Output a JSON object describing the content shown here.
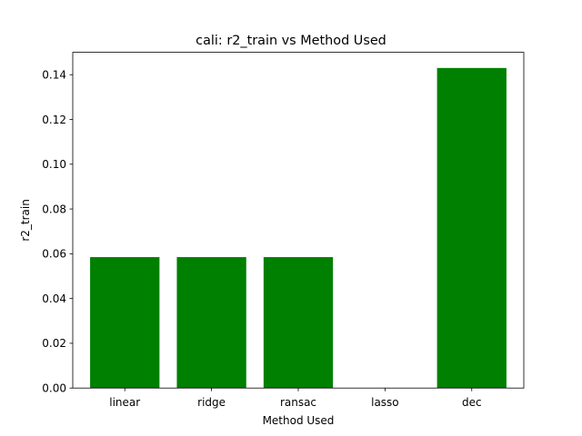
{
  "chart_data": {
    "type": "bar",
    "title": "cali: r2_train vs Method Used",
    "xlabel": "Method Used",
    "ylabel": "r2_train",
    "categories": [
      "linear",
      "ridge",
      "ransac",
      "lasso",
      "dec"
    ],
    "values": [
      0.0585,
      0.0585,
      0.0585,
      0.0,
      0.143
    ],
    "ylim": [
      0,
      0.15
    ],
    "yticks": [
      0.0,
      0.02,
      0.04,
      0.06,
      0.08,
      0.1,
      0.12,
      0.14
    ],
    "ytick_labels": [
      "0.00",
      "0.02",
      "0.04",
      "0.06",
      "0.08",
      "0.10",
      "0.12",
      "0.14"
    ],
    "bar_color": "#008000",
    "grid": false,
    "legend": "none"
  }
}
